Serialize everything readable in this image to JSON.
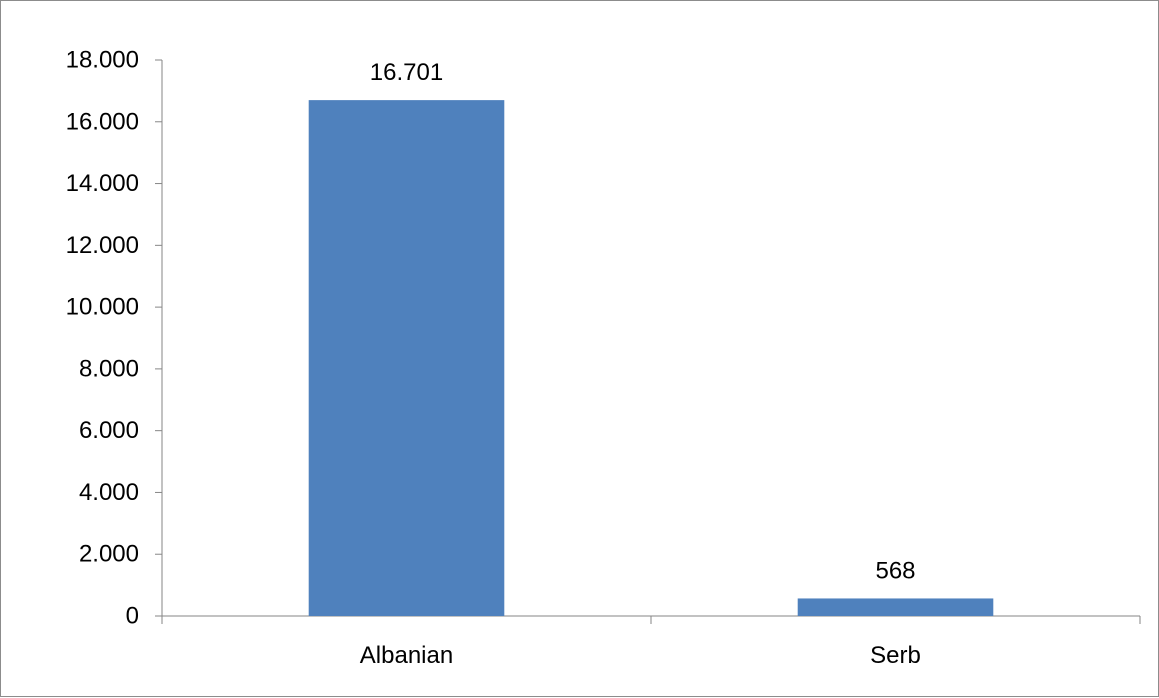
{
  "chart_data": {
    "type": "bar",
    "categories": [
      "Albanian",
      "Serb"
    ],
    "values": [
      16701,
      568
    ],
    "data_labels": [
      "16.701",
      "568"
    ],
    "yticks": [
      0,
      2000,
      4000,
      6000,
      8000,
      10000,
      12000,
      14000,
      16000,
      18000
    ],
    "ytick_labels": [
      "0",
      "2.000",
      "4.000",
      "6.000",
      "8.000",
      "10.000",
      "12.000",
      "14.000",
      "16.000",
      "18.000"
    ],
    "ylim": [
      0,
      18000
    ],
    "title": "",
    "xlabel": "",
    "ylabel": "",
    "grid": false,
    "legend": "none",
    "colors": {
      "bar": "#4f81bd",
      "axis": "#868686",
      "border": "#8c8c8c",
      "text": "#000000"
    }
  }
}
